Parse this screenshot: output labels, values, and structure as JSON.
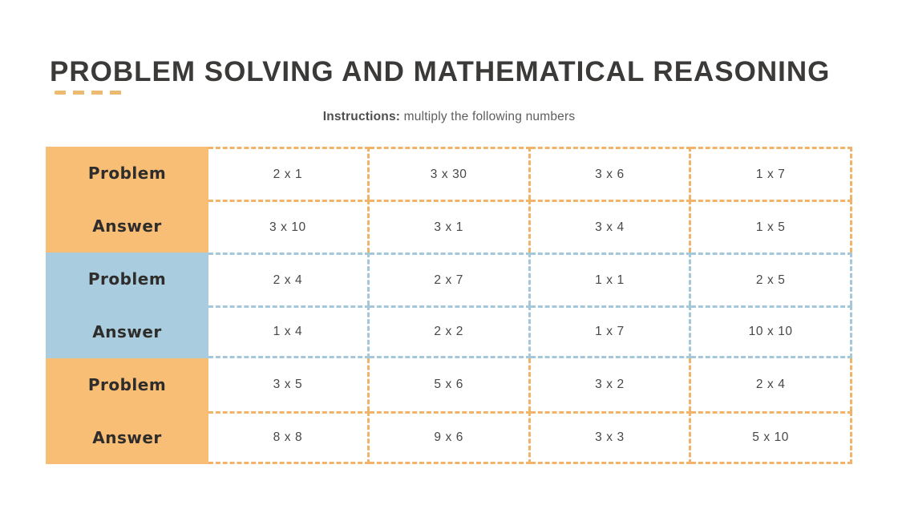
{
  "page": {
    "title": "PROBLEM SOLVING AND MATHEMATICAL REASONING",
    "instructions_label": "Instructions:",
    "instructions_text": " multiply the following numbers"
  },
  "colors": {
    "orange_block": "#f8be76",
    "orange_dash": "#f1b269",
    "blue_block": "#a9cdde",
    "blue_dash": "#a4c8da",
    "title_text": "#3b3a38",
    "cell_text": "#474747"
  },
  "table": {
    "row_labels": [
      "Problem",
      "Answer"
    ],
    "sections": [
      {
        "color": "orange",
        "problem": [
          "2 x 1",
          "3 x 30",
          "3 x 6",
          "1 x 7"
        ],
        "answer": [
          "3 x 10",
          "3 x 1",
          "3 x 4",
          "1 x 5"
        ]
      },
      {
        "color": "blue",
        "problem": [
          "2 x 4",
          "2 x 7",
          "1 x 1",
          "2 x 5"
        ],
        "answer": [
          "1 x 4",
          "2 x 2",
          "1 x 7",
          "10 x 10"
        ]
      },
      {
        "color": "orange",
        "problem": [
          "3 x 5",
          "5 x 6",
          "3 x 2",
          "2 x 4"
        ],
        "answer": [
          "8 x 8",
          "9 x 6",
          "3 x 3",
          "5 x 10"
        ]
      }
    ]
  }
}
